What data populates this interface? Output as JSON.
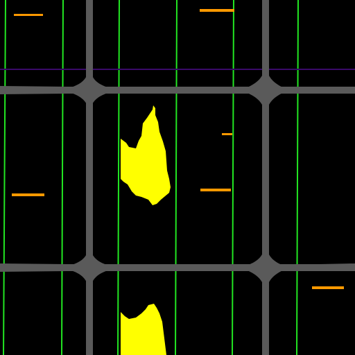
{
  "map": {
    "background_color": "#000000",
    "colors": {
      "road": "#5a5a5a",
      "lane_line": "#22e622",
      "boundary_line": "#3a0a6a",
      "marker": "#ff9900",
      "region": "#ffff00"
    },
    "layers": [
      "road-network",
      "green-lane-lines",
      "purple-boundary-line",
      "orange-markers",
      "yellow-regions"
    ]
  }
}
